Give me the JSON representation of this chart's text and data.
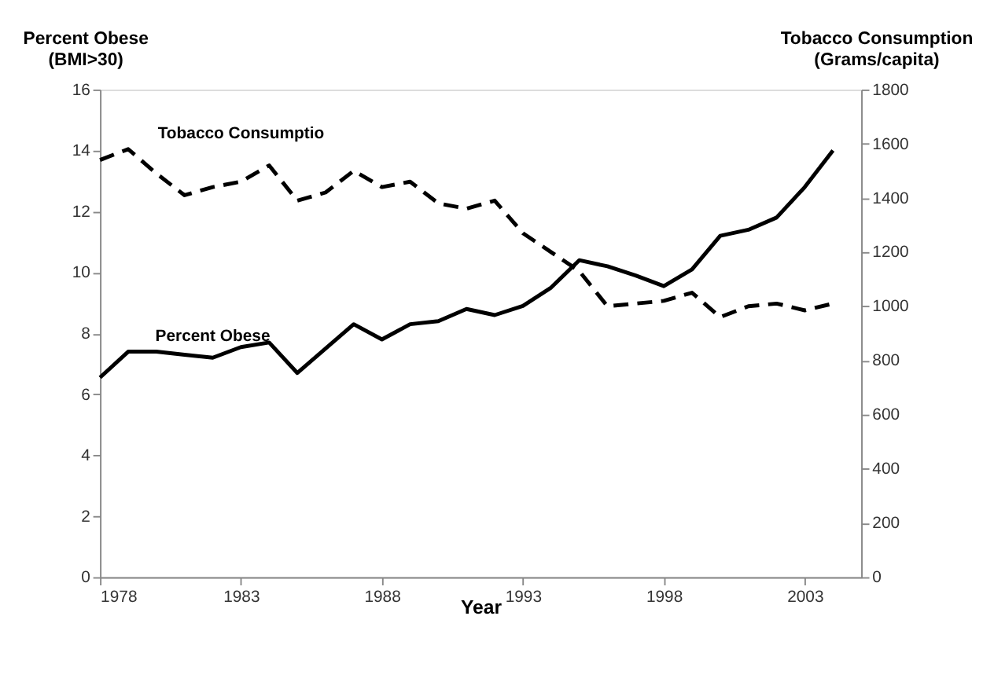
{
  "chart_data": {
    "type": "line",
    "xlabel": "Year",
    "ylabel": "Percent Obese\n(BMI>30)",
    "y2label": "Tobacco Consumption\n(Grams/capita)",
    "x": [
      1978,
      1979,
      1980,
      1981,
      1982,
      1983,
      1984,
      1985,
      1986,
      1987,
      1988,
      1989,
      1990,
      1991,
      1992,
      1993,
      1994,
      1995,
      1996,
      1997,
      1998,
      1999,
      2000,
      2001,
      2002,
      2003,
      2004
    ],
    "series": [
      {
        "name": "Percent Obese",
        "color": "#000000",
        "line_style": "solid",
        "values": [
          6.55,
          7.4,
          7.4,
          7.3,
          7.2,
          7.55,
          7.7,
          6.7,
          7.5,
          8.3,
          7.8,
          8.3,
          8.4,
          8.8,
          8.6,
          8.9,
          9.5,
          10.4,
          10.2,
          9.9,
          9.55,
          10.1,
          11.2,
          11.4,
          11.8,
          12.8,
          14.0
        ]
      },
      {
        "name": "Tobacco Consumptio",
        "color": "#000000",
        "line_style": "dashed",
        "axis": "y2",
        "values": [
          1540,
          1580,
          1490,
          1410,
          1440,
          1460,
          1520,
          1390,
          1420,
          1500,
          1440,
          1460,
          1380,
          1360,
          1390,
          1270,
          1200,
          1130,
          1000,
          1010,
          1020,
          1050,
          960,
          1000,
          1010,
          985,
          1010
        ]
      }
    ],
    "xlim": [
      1978,
      2005
    ],
    "xticks": [
      1978,
      1983,
      1988,
      1993,
      1998,
      2003
    ],
    "ylim": [
      0,
      16
    ],
    "yticks": [
      0,
      2,
      4,
      6,
      8,
      10,
      12,
      14,
      16
    ],
    "y2lim": [
      0,
      1800
    ],
    "y2ticks": [
      0,
      200,
      400,
      600,
      800,
      1000,
      1200,
      1400,
      1600,
      1800
    ],
    "grid": false,
    "legend": false,
    "marker": "none"
  }
}
